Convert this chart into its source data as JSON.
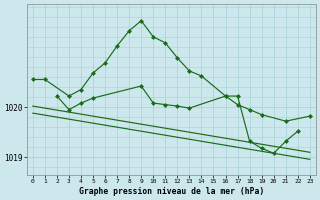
{
  "title": "Graphe pression niveau de la mer (hPa)",
  "background_color": "#cce8ed",
  "grid_color": "#aad4db",
  "line_color": "#1a6b1a",
  "x_labels": [
    "0",
    "1",
    "2",
    "3",
    "4",
    "5",
    "6",
    "7",
    "8",
    "9",
    "10",
    "11",
    "12",
    "13",
    "14",
    "15",
    "16",
    "17",
    "18",
    "19",
    "20",
    "21",
    "22",
    "23"
  ],
  "line1_x": [
    0,
    1,
    3,
    4,
    5,
    6,
    7,
    8,
    9,
    10,
    11,
    12,
    13,
    14,
    16,
    17,
    18,
    19,
    21,
    23
  ],
  "line1_y": [
    1020.55,
    1020.55,
    1020.22,
    1020.35,
    1020.68,
    1020.88,
    1021.22,
    1021.52,
    1021.72,
    1021.4,
    1021.28,
    1020.98,
    1020.72,
    1020.62,
    1020.22,
    1020.05,
    1019.95,
    1019.85,
    1019.72,
    1019.82
  ],
  "line2_x": [
    2,
    3,
    4,
    5,
    9,
    10,
    11,
    12,
    13,
    16,
    17,
    18,
    19,
    20,
    21,
    22
  ],
  "line2_y": [
    1020.22,
    1019.95,
    1020.08,
    1020.18,
    1020.42,
    1020.08,
    1020.05,
    1020.02,
    1019.98,
    1020.22,
    1020.22,
    1019.32,
    1019.18,
    1019.08,
    1019.32,
    1019.52
  ],
  "line3_x": [
    0,
    1,
    2,
    3,
    4,
    5,
    6,
    7,
    8,
    9,
    10,
    11,
    12,
    13,
    14,
    15,
    16,
    17,
    18,
    19,
    20,
    21,
    22,
    23
  ],
  "line3_y": [
    1020.02,
    1019.98,
    1019.94,
    1019.9,
    1019.86,
    1019.82,
    1019.78,
    1019.74,
    1019.7,
    1019.66,
    1019.62,
    1019.58,
    1019.54,
    1019.5,
    1019.46,
    1019.42,
    1019.38,
    1019.34,
    1019.3,
    1019.26,
    1019.22,
    1019.18,
    1019.14,
    1019.1
  ],
  "line4_x": [
    0,
    1,
    2,
    3,
    4,
    5,
    6,
    7,
    8,
    9,
    10,
    11,
    12,
    13,
    14,
    15,
    16,
    17,
    18,
    19,
    20,
    21,
    22,
    23
  ],
  "line4_y": [
    1019.88,
    1019.84,
    1019.8,
    1019.76,
    1019.72,
    1019.68,
    1019.64,
    1019.6,
    1019.56,
    1019.52,
    1019.48,
    1019.44,
    1019.4,
    1019.36,
    1019.32,
    1019.28,
    1019.24,
    1019.2,
    1019.16,
    1019.12,
    1019.08,
    1019.04,
    1019.0,
    1018.96
  ],
  "ylim": [
    1018.65,
    1022.05
  ],
  "yticks": [
    1019.0,
    1020.0
  ],
  "ylabel_pos_1019": 1019.0,
  "ylabel_pos_1020": 1020.0,
  "figsize": [
    3.2,
    2.0
  ],
  "dpi": 100
}
